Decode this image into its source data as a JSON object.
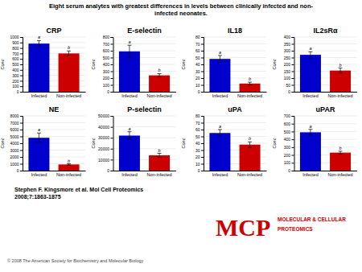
{
  "title": [
    "Eight serum analytes with greatest differences in levels between clinically infected and non-",
    "infected neonates."
  ],
  "annotations": [
    {
      "text": "Stephen F. Kingsmore et al. Mol Cell Proteomics"
    },
    {
      "text": "2008;7:1863-1875"
    },
    {
      "text": "© 2008 The American Society for Biochemistry and Molecular Biology",
      "color": "#444444"
    },
    {
      "text": "MCP",
      "color": "#cc0000"
    },
    {
      "text": "MOLECULAR & CELLULAR",
      "color": "#cc0000"
    },
    {
      "text": "PROTEOMICS",
      "color": "#cc0000"
    }
  ],
  "chart_data": [
    {
      "type": "bar",
      "title": "CRP",
      "ylabel": "Conc",
      "categories": [
        "Infected",
        "Non-infected"
      ],
      "values": [
        880,
        700
      ],
      "errors": [
        55,
        45
      ],
      "annotations": [
        "a",
        "b"
      ],
      "colors": [
        "#0000cc",
        "#cc0000"
      ],
      "ylim": [
        0,
        1000
      ],
      "yticks": [
        0,
        100,
        200,
        300,
        400,
        500,
        600,
        700,
        800,
        900,
        1000
      ],
      "grid": true
    },
    {
      "type": "bar",
      "title": "E-selectin",
      "ylabel": "Conc",
      "categories": [
        "Infected",
        "Non-infected"
      ],
      "values": [
        590,
        240
      ],
      "errors": [
        90,
        25
      ],
      "annotations": [
        "a",
        "b"
      ],
      "colors": [
        "#0000cc",
        "#cc0000"
      ],
      "ylim": [
        0,
        800
      ],
      "yticks": [
        0,
        100,
        200,
        300,
        400,
        500,
        600,
        700,
        800
      ],
      "grid": true
    },
    {
      "type": "bar",
      "title": "IL18",
      "ylabel": "Conc",
      "categories": [
        "Infected",
        "Non-infected"
      ],
      "values": [
        48,
        12
      ],
      "errors": [
        5,
        2
      ],
      "annotations": [
        "a",
        "b"
      ],
      "colors": [
        "#0000cc",
        "#cc0000"
      ],
      "ylim": [
        0,
        80
      ],
      "yticks": [
        0,
        10,
        20,
        30,
        40,
        50,
        60,
        70,
        80
      ],
      "grid": true
    },
    {
      "type": "bar",
      "title": "IL2sRα",
      "ylabel": "Conc",
      "categories": [
        "Infected",
        "Non-infected"
      ],
      "values": [
        270,
        155
      ],
      "errors": [
        22,
        18
      ],
      "annotations": [
        "a",
        "b"
      ],
      "colors": [
        "#0000cc",
        "#cc0000"
      ],
      "ylim": [
        0,
        400
      ],
      "yticks": [
        0,
        50,
        100,
        150,
        200,
        250,
        300,
        350,
        400
      ],
      "grid": true
    },
    {
      "type": "bar",
      "title": "NE",
      "ylabel": "Conc",
      "categories": [
        "Infected",
        "Non-infected"
      ],
      "values": [
        4800,
        900
      ],
      "errors": [
        700,
        100
      ],
      "annotations": [
        "a",
        "b"
      ],
      "colors": [
        "#0000cc",
        "#cc0000"
      ],
      "ylim": [
        0,
        8000
      ],
      "yticks": [
        0,
        1000,
        2000,
        3000,
        4000,
        5000,
        6000,
        7000,
        8000
      ],
      "grid": true
    },
    {
      "type": "bar",
      "title": "P-selectin",
      "ylabel": "Conc",
      "categories": [
        "Infected",
        "Non-infected"
      ],
      "values": [
        32000,
        14000
      ],
      "errors": [
        3500,
        1800
      ],
      "annotations": [
        "a",
        "b"
      ],
      "colors": [
        "#0000cc",
        "#cc0000"
      ],
      "ylim": [
        0,
        50000
      ],
      "yticks": [
        0,
        10000,
        20000,
        30000,
        40000,
        50000
      ],
      "grid": true
    },
    {
      "type": "bar",
      "title": "uPA",
      "ylabel": "Conc",
      "categories": [
        "Infected",
        "Non-infected"
      ],
      "values": [
        55,
        38
      ],
      "errors": [
        5,
        4
      ],
      "annotations": [
        "a",
        "b"
      ],
      "colors": [
        "#0000cc",
        "#cc0000"
      ],
      "ylim": [
        0,
        80
      ],
      "yticks": [
        0,
        10,
        20,
        30,
        40,
        50,
        60,
        70,
        80
      ],
      "grid": true
    },
    {
      "type": "bar",
      "title": "uPAR",
      "ylabel": "Conc",
      "categories": [
        "Infected",
        "Non-infected"
      ],
      "values": [
        490,
        230
      ],
      "errors": [
        38,
        18
      ],
      "annotations": [
        "a",
        "b"
      ],
      "colors": [
        "#0000cc",
        "#cc0000"
      ],
      "ylim": [
        0,
        700
      ],
      "yticks": [
        0,
        100,
        200,
        300,
        400,
        500,
        600,
        700
      ],
      "grid": true
    }
  ]
}
